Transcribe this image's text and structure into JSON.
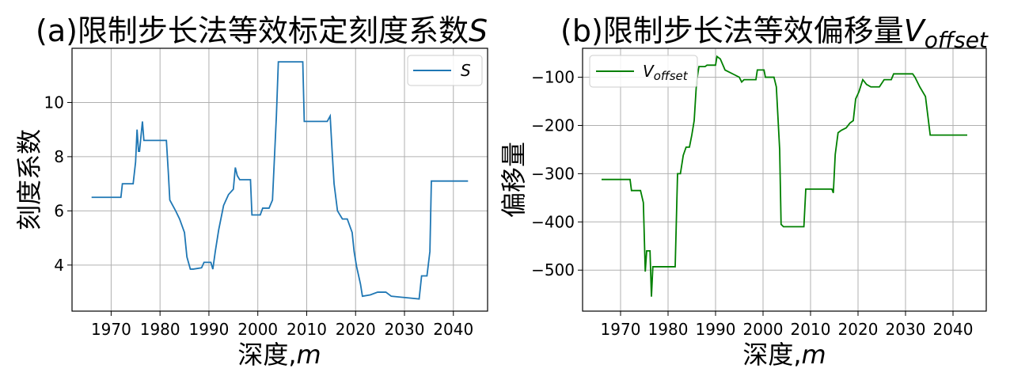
{
  "chart_data": [
    {
      "type": "line",
      "title": "(a)限制步长法等效标定刻度系数",
      "title_symbol": "S",
      "xlabel": "深度,",
      "xlabel_symbol": "m",
      "ylabel": "刻度系数",
      "xlim": [
        1962,
        2047
      ],
      "ylim": [
        2.3,
        12.0
      ],
      "xticks": [
        1970,
        1980,
        1990,
        2000,
        2010,
        2020,
        2030,
        2040
      ],
      "yticks": [
        4,
        6,
        8,
        10
      ],
      "grid": true,
      "legend_position": "top-right",
      "series": [
        {
          "name": "S",
          "color": "#1f77b4",
          "x": [
            1966,
            1972,
            1972.3,
            1974.5,
            1975,
            1975.3,
            1975.6,
            1975.8,
            1976.4,
            1976.7,
            1977.0,
            1977.2,
            1981.3,
            1981.7,
            1982.0,
            1982.6,
            1983.2,
            1984,
            1985,
            1985.5,
            1986.2,
            1986.8,
            1988.5,
            1989,
            1990.4,
            1990.8,
            1991.3,
            1992,
            1993,
            1994,
            1995,
            1995.4,
            1995.8,
            1996.3,
            1996.8,
            1998.5,
            1998.8,
            2000.5,
            2001,
            2002.3,
            2003,
            2003.8,
            2004.2,
            2009.2,
            2009.5,
            2010.5,
            2014.2,
            2014.8,
            2015.2,
            2015.6,
            2016.3,
            2017.3,
            2018.3,
            2019.3,
            2019.7,
            2020.2,
            2021,
            2021.4,
            2023,
            2024.5,
            2026.2,
            2027.3,
            2033,
            2033.5,
            2034.6,
            2035.2,
            2035.5,
            2043
          ],
          "y": [
            6.5,
            6.5,
            7.0,
            7.0,
            7.8,
            9.0,
            8.2,
            8.2,
            9.3,
            8.6,
            8.6,
            8.6,
            8.6,
            7.4,
            6.4,
            6.2,
            6.0,
            5.7,
            5.2,
            4.3,
            3.85,
            3.85,
            3.9,
            4.1,
            4.1,
            3.85,
            4.5,
            5.3,
            6.2,
            6.6,
            6.8,
            7.6,
            7.3,
            7.15,
            7.15,
            7.15,
            5.85,
            5.85,
            6.1,
            6.1,
            6.4,
            9.5,
            11.5,
            11.5,
            9.3,
            9.3,
            9.3,
            9.5,
            8.2,
            7.0,
            6.0,
            5.7,
            5.7,
            5.2,
            4.5,
            3.95,
            3.3,
            2.85,
            2.9,
            3.0,
            3.0,
            2.85,
            2.75,
            3.6,
            3.6,
            4.5,
            7.1,
            7.1
          ]
        }
      ]
    },
    {
      "type": "line",
      "title": "(b)限制步长法等效偏移量",
      "title_symbol": "V",
      "title_subscript": "offset",
      "xlabel": "深度,",
      "xlabel_symbol": "m",
      "ylabel": "偏移量",
      "xlim": [
        1962,
        2047
      ],
      "ylim": [
        -585,
        -40
      ],
      "xticks": [
        1970,
        1980,
        1990,
        2000,
        2010,
        2020,
        2030,
        2040
      ],
      "yticks": [
        -100,
        -200,
        -300,
        -400,
        -500
      ],
      "grid": true,
      "legend_position": "top-left",
      "series": [
        {
          "name": "V",
          "name_subscript": "offset",
          "color": "#008000",
          "x": [
            1966,
            1972,
            1972.3,
            1974.2,
            1974.8,
            1975.2,
            1975.5,
            1976.2,
            1976.5,
            1976.8,
            1981.5,
            1982,
            1982.6,
            1983.2,
            1983.8,
            1984.5,
            1985,
            1985.5,
            1986,
            1986.5,
            1987.8,
            1988.2,
            1990,
            1990.3,
            1991,
            1992,
            1994,
            1995,
            1995.5,
            1996,
            1998.5,
            1998.8,
            2000.2,
            2000.5,
            2002.3,
            2002.8,
            2003.5,
            2003.8,
            2004.3,
            2008.6,
            2009,
            2014,
            2014.5,
            2014.8,
            2015.2,
            2015.8,
            2016.5,
            2017.5,
            2018.3,
            2019,
            2019.5,
            2020.2,
            2021,
            2021.8,
            2022.7,
            2024.5,
            2025.5,
            2027,
            2027.5,
            2031.5,
            2032,
            2033,
            2034.2,
            2035.2,
            2043
          ],
          "y": [
            -312,
            -312,
            -335,
            -335,
            -360,
            -503,
            -460,
            -460,
            -555,
            -493,
            -493,
            -300,
            -300,
            -262,
            -245,
            -245,
            -220,
            -190,
            -110,
            -78,
            -78,
            -75,
            -75,
            -57,
            -62,
            -85,
            -95,
            -100,
            -110,
            -105,
            -105,
            -85,
            -85,
            -100,
            -100,
            -120,
            -250,
            -405,
            -410,
            -410,
            -332,
            -332,
            -332,
            -340,
            -260,
            -215,
            -210,
            -205,
            -195,
            -190,
            -145,
            -130,
            -105,
            -115,
            -120,
            -120,
            -105,
            -105,
            -93,
            -93,
            -100,
            -120,
            -140,
            -220,
            -220
          ]
        }
      ]
    }
  ]
}
